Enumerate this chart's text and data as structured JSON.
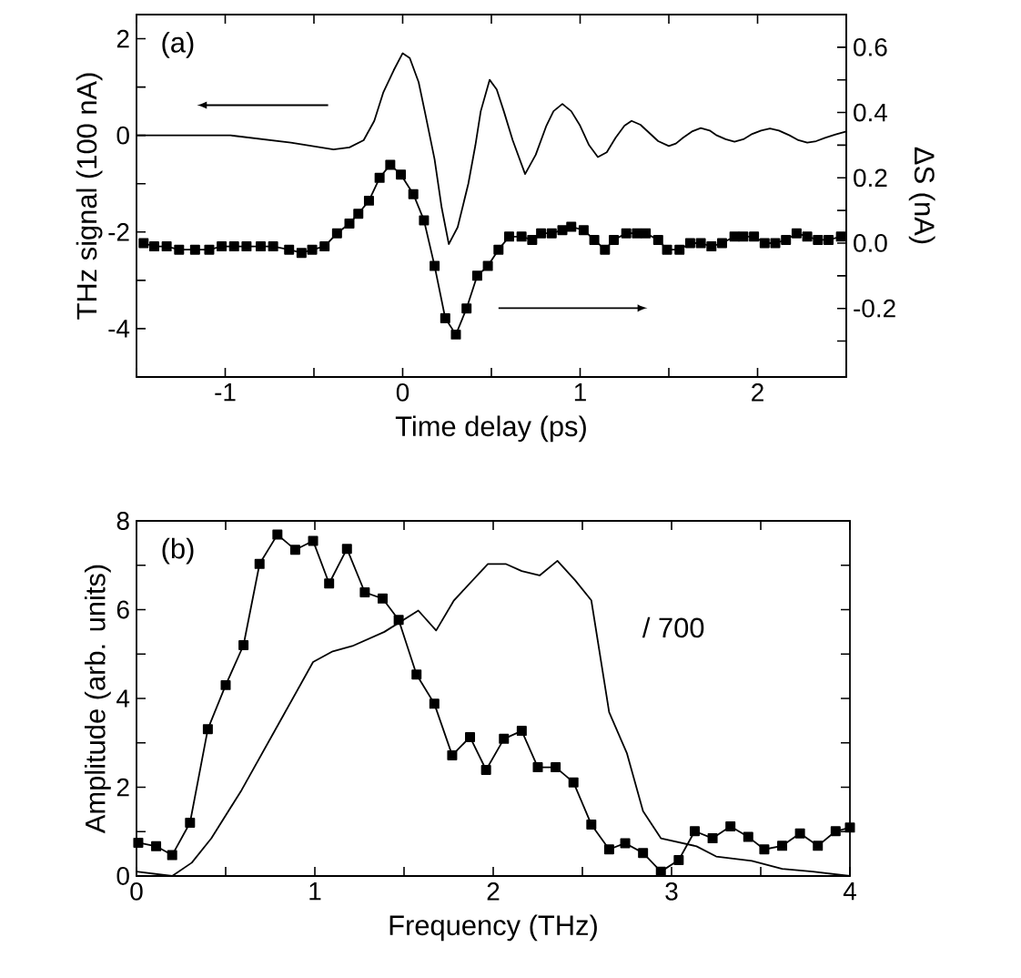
{
  "chart_data": [
    {
      "type": "line",
      "xlabel": "Time delay (ps)",
      "ylabel": "THz signal (100 nA)",
      "y2label": "ΔS (nA)",
      "annotations": [
        "(a)"
      ],
      "xlim": [
        -1.5,
        2.5
      ],
      "ylim": [
        -5,
        2.5
      ],
      "y2lim": [
        -0.41,
        0.7
      ],
      "xticks": [
        {
          "value": -1.5,
          "label": null
        },
        -1,
        {
          "value": -0.5,
          "label": null
        },
        0,
        {
          "value": 0.5,
          "label": null
        },
        1,
        {
          "value": 1.5,
          "label": null
        },
        2,
        {
          "value": 2.5,
          "label": null
        }
      ],
      "yticks": [
        -4,
        {
          "value": -3,
          "label": null
        },
        -2,
        {
          "value": -1,
          "label": null
        },
        0,
        {
          "value": 1,
          "label": null
        },
        2
      ],
      "y2ticks": [
        {
          "value": -0.3,
          "label": null
        },
        -0.2,
        {
          "value": -0.1,
          "label": null
        },
        {
          "value": 0,
          "label": "0.0"
        },
        {
          "value": 0.1,
          "label": null
        },
        0.2,
        {
          "value": 0.3,
          "label": null
        },
        0.4,
        {
          "value": 0.5,
          "label": null
        },
        0.6
      ],
      "series": [
        {
          "color": "#000000",
          "marker": "none",
          "x": [
            -1.5,
            -0.97,
            -0.63,
            -0.39,
            -0.3,
            -0.22,
            -0.16,
            -0.11,
            -0.05,
            0.0,
            0.04,
            0.09,
            0.13,
            0.18,
            0.22,
            0.26,
            0.31,
            0.37,
            0.41,
            0.44,
            0.49,
            0.53,
            0.57,
            0.62,
            0.69,
            0.75,
            0.81,
            0.85,
            0.9,
            0.95,
            1.0,
            1.05,
            1.1,
            1.15,
            1.2,
            1.25,
            1.29,
            1.34,
            1.39,
            1.44,
            1.5,
            1.54,
            1.58,
            1.63,
            1.68,
            1.73,
            1.77,
            1.82,
            1.87,
            1.92,
            1.97,
            2.02,
            2.07,
            2.12,
            2.18,
            2.23,
            2.28,
            2.33,
            2.38,
            2.44,
            2.5
          ],
          "values": [
            0,
            0,
            -0.15,
            -0.29,
            -0.25,
            -0.1,
            0.3,
            0.88,
            1.35,
            1.7,
            1.6,
            1.1,
            0.4,
            -0.5,
            -1.5,
            -2.25,
            -1.9,
            -1.0,
            -0.2,
            0.5,
            1.15,
            0.95,
            0.5,
            -0.1,
            -0.8,
            -0.4,
            0.2,
            0.5,
            0.65,
            0.5,
            0.2,
            -0.2,
            -0.45,
            -0.35,
            -0.05,
            0.2,
            0.3,
            0.22,
            0.05,
            -0.12,
            -0.22,
            -0.17,
            -0.05,
            0.08,
            0.15,
            0.1,
            0.0,
            -0.08,
            -0.13,
            -0.08,
            0.03,
            0.1,
            0.14,
            0.1,
            0.0,
            -0.1,
            -0.15,
            -0.12,
            -0.05,
            0.02,
            0.08
          ]
        },
        {
          "color": "#000000",
          "marker": "square",
          "axis": "y2",
          "x": [
            -1.46,
            -1.4,
            -1.33,
            -1.26,
            -1.17,
            -1.09,
            -1.02,
            -0.95,
            -0.88,
            -0.8,
            -0.73,
            -0.64,
            -0.57,
            -0.51,
            -0.44,
            -0.37,
            -0.3,
            -0.25,
            -0.19,
            -0.13,
            -0.07,
            -0.01,
            0.06,
            0.12,
            0.18,
            0.24,
            0.3,
            0.36,
            0.42,
            0.48,
            0.54,
            0.6,
            0.67,
            0.73,
            0.78,
            0.84,
            0.9,
            0.95,
            1.02,
            1.08,
            1.14,
            1.19,
            1.26,
            1.32,
            1.37,
            1.44,
            1.49,
            1.56,
            1.62,
            1.68,
            1.74,
            1.8,
            1.87,
            1.92,
            1.98,
            2.04,
            2.1,
            2.16,
            2.22,
            2.28,
            2.34,
            2.4,
            2.47
          ],
          "values": [
            0.0,
            -0.01,
            -0.01,
            -0.02,
            -0.02,
            -0.02,
            -0.01,
            -0.01,
            -0.01,
            -0.01,
            -0.01,
            -0.02,
            -0.03,
            -0.02,
            -0.01,
            0.03,
            0.06,
            0.09,
            0.13,
            0.2,
            0.24,
            0.21,
            0.15,
            0.07,
            -0.07,
            -0.23,
            -0.28,
            -0.2,
            -0.1,
            -0.07,
            -0.02,
            0.02,
            0.02,
            0.01,
            0.03,
            0.03,
            0.04,
            0.05,
            0.04,
            0.01,
            -0.02,
            0.01,
            0.03,
            0.03,
            0.03,
            0.01,
            -0.02,
            -0.02,
            0.0,
            0.0,
            -0.01,
            0.0,
            0.02,
            0.02,
            0.02,
            0.0,
            0.0,
            0.01,
            0.03,
            0.02,
            0.01,
            0.01,
            0.02
          ]
        }
      ]
    },
    {
      "type": "line",
      "xlabel": "Frequency (THz)",
      "ylabel": "Amplitude (arb. units)",
      "annotations": [
        "(b)",
        "/ 700"
      ],
      "xlim": [
        0,
        4
      ],
      "ylim": [
        0,
        8
      ],
      "xticks": [
        0,
        {
          "value": 0.5,
          "label": null
        },
        1,
        {
          "value": 1.5,
          "label": null
        },
        2,
        {
          "value": 2.5,
          "label": null
        },
        3,
        {
          "value": 3.5,
          "label": null
        },
        4
      ],
      "yticks": [
        0,
        {
          "value": 1,
          "label": null
        },
        2,
        {
          "value": 3,
          "label": null
        },
        4,
        {
          "value": 5,
          "label": null
        },
        6,
        {
          "value": 7,
          "label": null
        },
        8
      ],
      "series": [
        {
          "color": "#000000",
          "marker": "square",
          "x": [
            0.01,
            0.11,
            0.2,
            0.3,
            0.4,
            0.5,
            0.6,
            0.69,
            0.79,
            0.89,
            0.99,
            1.08,
            1.18,
            1.28,
            1.38,
            1.47,
            1.57,
            1.67,
            1.77,
            1.87,
            1.96,
            2.06,
            2.16,
            2.25,
            2.35,
            2.45,
            2.55,
            2.65,
            2.74,
            2.84,
            2.94,
            3.04,
            3.13,
            3.23,
            3.33,
            3.43,
            3.52,
            3.62,
            3.72,
            3.82,
            3.92,
            4.0
          ],
          "values": [
            0.75,
            0.67,
            0.47,
            1.2,
            3.31,
            4.3,
            5.2,
            7.03,
            7.69,
            7.35,
            7.55,
            6.59,
            7.37,
            6.39,
            6.25,
            5.77,
            4.54,
            3.88,
            2.72,
            3.13,
            2.39,
            3.09,
            3.27,
            2.45,
            2.45,
            2.11,
            1.16,
            0.6,
            0.74,
            0.52,
            0.1,
            0.36,
            1.01,
            0.85,
            1.12,
            0.88,
            0.6,
            0.68,
            0.96,
            0.68,
            1.01,
            1.09
          ]
        },
        {
          "color": "#000000",
          "marker": "none",
          "x": [
            0,
            0.2,
            0.31,
            0.42,
            0.59,
            0.8,
            0.99,
            1.1,
            1.21,
            1.39,
            1.58,
            1.68,
            1.78,
            1.97,
            2.07,
            2.16,
            2.26,
            2.36,
            2.46,
            2.55,
            2.65,
            2.75,
            2.84,
            2.94,
            3.14,
            3.25,
            3.45,
            3.62,
            3.79,
            4.0
          ],
          "values": [
            0.1,
            0,
            0.3,
            0.85,
            1.94,
            3.45,
            4.82,
            5.06,
            5.18,
            5.5,
            5.98,
            5.53,
            6.21,
            7.03,
            7.03,
            6.87,
            6.77,
            7.1,
            6.66,
            6.21,
            3.69,
            2.76,
            1.46,
            0.85,
            0.67,
            0.44,
            0.34,
            0.16,
            0.1,
            0
          ]
        }
      ]
    }
  ]
}
